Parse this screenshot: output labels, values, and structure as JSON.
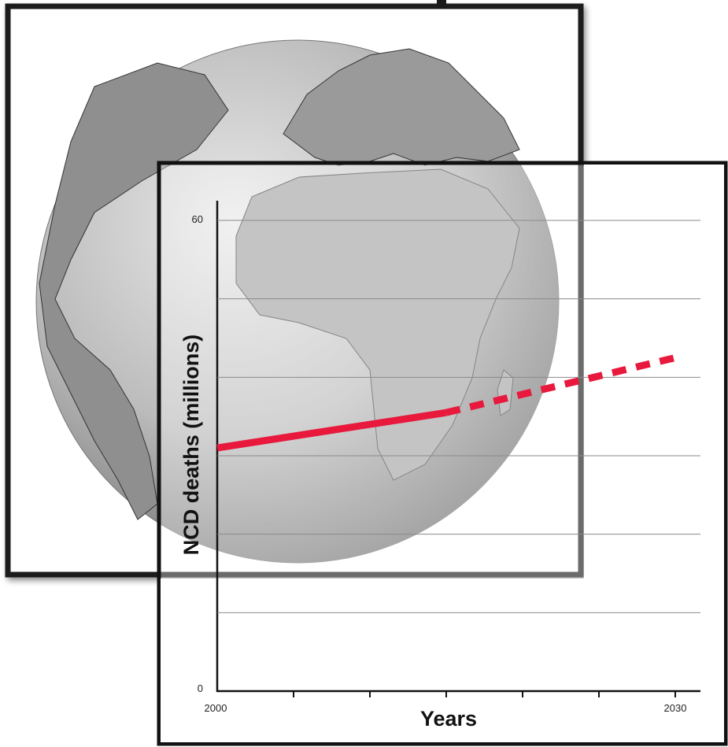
{
  "chart_data": {
    "type": "line",
    "title": "",
    "xlabel": "Years",
    "ylabel": "NCD deaths (millions)",
    "xlim": [
      2000,
      2030
    ],
    "ylim": [
      0,
      60
    ],
    "x_tick_labels": [
      "2000",
      "2030"
    ],
    "y_tick_labels": [
      "0",
      "60"
    ],
    "grid": true,
    "legend": "none",
    "series": [
      {
        "line_style": "solid",
        "color": "#e8193c",
        "points": [
          {
            "x": 2000,
            "y": 31
          },
          {
            "x": 2015,
            "y": 35.5
          }
        ]
      },
      {
        "line_style": "dashed",
        "color": "#e8193c",
        "points": [
          {
            "x": 2015,
            "y": 35.5
          },
          {
            "x": 2030,
            "y": 42.5
          }
        ]
      }
    ]
  },
  "background": {
    "illustration": "globe-icon",
    "globe_color": "#8c8c8c",
    "frame_color": "#1a1a1a"
  }
}
